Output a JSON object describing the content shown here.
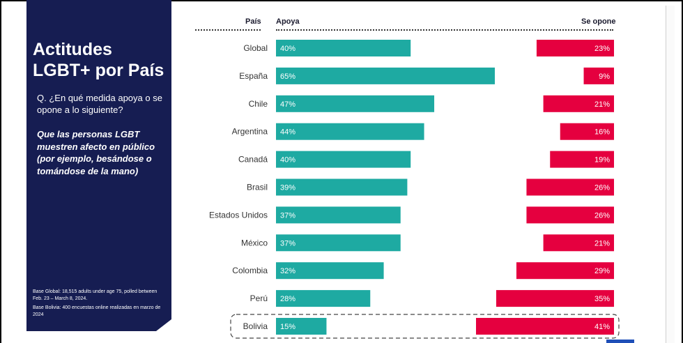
{
  "panel": {
    "title": "Actitudes LGBT+ por País",
    "question": "Q. ¿En qué medida apoya o se opone a lo siguiente?",
    "statement": "Que las personas LGBT muestren afecto en público (por ejemplo, besándose o tomándose de la mano)",
    "note_global": "Base Global: 18,515 adults under age 75, polled between Feb. 23 – March 8, 2024.",
    "note_bolivia": "Base Bolivia: 400 encuestas online realizadas en marzo de 2024",
    "background_color": "#161d52"
  },
  "headers": {
    "country": "País",
    "support": "Apoya",
    "oppose": "Se opone"
  },
  "colors": {
    "support": "#1eaaa2",
    "oppose": "#e5003f",
    "highlight_border": "#444444"
  },
  "chart_data": {
    "type": "bar",
    "orientation": "horizontal-diverging",
    "categories": [
      "Global",
      "España",
      "Chile",
      "Argentina",
      "Canadá",
      "Brasil",
      "Estados Unidos",
      "México",
      "Colombia",
      "Perú",
      "Bolivia"
    ],
    "series": [
      {
        "name": "Apoya",
        "values": [
          40,
          65,
          47,
          44,
          40,
          39,
          37,
          37,
          32,
          28,
          15
        ],
        "labels": [
          "40%",
          "65%",
          "47%",
          "44%",
          "40%",
          "39%",
          "37%",
          "37%",
          "32%",
          "28%",
          "15%"
        ]
      },
      {
        "name": "Se opone",
        "values": [
          23,
          9,
          21,
          16,
          19,
          26,
          26,
          21,
          29,
          35,
          41
        ],
        "labels": [
          "23%",
          "9%",
          "21%",
          "16%",
          "19%",
          "26%",
          "26%",
          "21%",
          "29%",
          "35%",
          "41%"
        ]
      }
    ],
    "highlighted_category": "Bolivia",
    "unit": "%"
  }
}
